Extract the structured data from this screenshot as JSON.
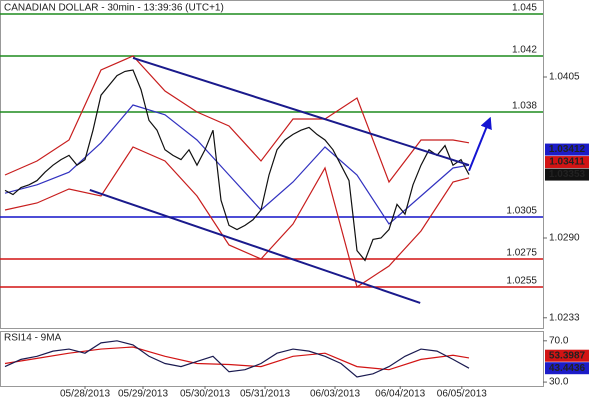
{
  "chart_data": [
    {
      "type": "line",
      "title": "CANADIAN DOLLAR - 30min - 13:39:36 (UTC+1)",
      "xlim": [
        -0.625,
        67.25
      ],
      "ylim": [
        1.02257,
        1.046
      ],
      "yticks": [
        1.0405,
        {
          "value": 1.029,
          "label": "1.0290"
        },
        1.0233
      ],
      "levels": [
        {
          "value": 1.045,
          "color": "#1e8c1e"
        },
        {
          "value": 1.042,
          "color": "#1e8c1e"
        },
        {
          "value": 1.038,
          "color": "#1e8c1e"
        },
        {
          "value": 1.0305,
          "color": "#1414c8"
        },
        {
          "value": 1.0275,
          "color": "#d21414"
        },
        {
          "value": 1.0255,
          "color": "#d21414"
        }
      ],
      "series": [
        {
          "color": "#c81e1e",
          "x": [
            0,
            4,
            8,
            12,
            16,
            20,
            24,
            28,
            32,
            36,
            40,
            44,
            48,
            52,
            56,
            58
          ],
          "values": [
            1.0335,
            1.0345,
            1.036,
            1.041,
            1.042,
            1.0395,
            1.038,
            1.037,
            1.0345,
            1.0375,
            1.0375,
            1.039,
            1.033,
            1.036,
            1.036,
            1.0358
          ]
        },
        {
          "color": "#c81e1e",
          "x": [
            0,
            4,
            8,
            12,
            16,
            20,
            24,
            28,
            32,
            36,
            40,
            44,
            48,
            52,
            56,
            58
          ],
          "values": [
            1.031,
            1.0315,
            1.0325,
            1.032,
            1.0355,
            1.0345,
            1.032,
            1.0285,
            1.0275,
            1.03,
            1.034,
            1.0255,
            1.027,
            1.0295,
            1.033,
            1.0333
          ]
        },
        {
          "color": "#3232c0",
          "x": [
            0,
            4,
            8,
            12,
            16,
            20,
            24,
            28,
            32,
            36,
            40,
            44,
            48,
            52,
            56,
            58
          ],
          "values": [
            1.0322,
            1.0328,
            1.0337,
            1.0358,
            1.0385,
            1.0378,
            1.036,
            1.0335,
            1.031,
            1.033,
            1.0355,
            1.0335,
            1.03,
            1.032,
            1.034,
            1.0342
          ]
        },
        {
          "color": "#111111",
          "x": [
            0,
            1,
            2,
            3,
            4,
            5,
            6,
            7,
            8,
            9,
            10,
            11,
            12,
            13,
            14,
            15,
            16,
            17,
            18,
            19,
            20,
            21,
            22,
            23,
            24,
            25,
            26,
            27,
            28,
            29,
            30,
            31,
            32,
            33,
            34,
            35,
            36,
            37,
            38,
            39,
            40,
            41,
            42,
            43,
            44,
            45,
            46,
            47,
            48,
            49,
            50,
            51,
            52,
            53,
            54,
            55,
            56,
            57,
            58
          ],
          "values": [
            1.0324,
            1.0321,
            1.0326,
            1.0328,
            1.0331,
            1.0337,
            1.0342,
            1.0346,
            1.0349,
            1.0342,
            1.0346,
            1.0367,
            1.0392,
            1.0399,
            1.0406,
            1.0409,
            1.041,
            1.0396,
            1.0374,
            1.0367,
            1.0353,
            1.0349,
            1.0346,
            1.0353,
            1.0342,
            1.0353,
            1.0367,
            1.0317,
            1.0299,
            1.0296,
            1.0299,
            1.0303,
            1.031,
            1.0335,
            1.0353,
            1.036,
            1.0364,
            1.0367,
            1.0369,
            1.0364,
            1.036,
            1.0353,
            1.0342,
            1.0331,
            1.0281,
            1.0274,
            1.0289,
            1.029,
            1.0296,
            1.0314,
            1.0307,
            1.0328,
            1.0342,
            1.0353,
            1.0349,
            1.0356,
            1.0342,
            1.0346,
            1.03353
          ]
        }
      ],
      "lines": [
        {
          "color": "#1a1a8c",
          "x": [
            16,
            58
          ],
          "y": [
            1.04186,
            1.03421
          ]
        },
        {
          "color": "#1a1a8c",
          "x": [
            10.6,
            51.9
          ],
          "y": [
            1.03243,
            1.02436
          ]
        },
        {
          "color": "#1414d2",
          "x": [
            58,
            60.6
          ],
          "y": [
            1.0338,
            1.0375
          ],
          "arrow": true
        }
      ],
      "tags": [
        {
          "value": 1.03412,
          "color": "#1c1cc8"
        },
        {
          "value": 1.03411,
          "color": "#d21414"
        },
        {
          "value": 1.03353,
          "color": "#111111"
        }
      ]
    },
    {
      "type": "line",
      "title": "RSI14 - 9MA",
      "xlim": [
        -0.625,
        67.25
      ],
      "ylim": [
        26.2,
        79.5
      ],
      "yticks": [
        {
          "value": 70,
          "label": "70.0"
        },
        {
          "value": 30,
          "label": "30.0"
        }
      ],
      "xticks": [
        {
          "value": 10,
          "label": "05/28/2013"
        },
        {
          "value": 17.25,
          "label": "05/29/2013"
        },
        {
          "value": 25,
          "label": "05/30/2013"
        },
        {
          "value": 32.5,
          "label": "05/31/2013"
        },
        {
          "value": 41.25,
          "label": "06/03/2013"
        },
        {
          "value": 49.4,
          "label": "06/04/2013"
        },
        {
          "value": 57.1,
          "label": "06/05/2013"
        }
      ],
      "series": [
        {
          "color": "#d21414",
          "x": [
            0,
            4,
            8,
            12,
            16,
            20,
            24,
            28,
            32,
            36,
            40,
            44,
            48,
            52,
            56,
            58
          ],
          "values": [
            48,
            53,
            58,
            62,
            64,
            55,
            48,
            47,
            45,
            55,
            58,
            45,
            42,
            52,
            56,
            53.3987
          ]
        },
        {
          "color": "#1a1a50",
          "x": [
            0,
            2,
            4,
            6,
            8,
            10,
            12,
            14,
            16,
            18,
            20,
            22,
            24,
            26,
            28,
            30,
            32,
            34,
            36,
            38,
            40,
            42,
            44,
            46,
            48,
            50,
            52,
            54,
            56,
            58
          ],
          "values": [
            45,
            52,
            55,
            60,
            62,
            58,
            68,
            70,
            66,
            55,
            48,
            45,
            50,
            55,
            40,
            42,
            48,
            58,
            62,
            60,
            55,
            48,
            35,
            38,
            45,
            55,
            62,
            60,
            52,
            43.4436
          ]
        }
      ],
      "tags": [
        {
          "value": 53.3987,
          "color": "#d21414"
        },
        {
          "value": 43.4436,
          "color": "#1c1cc8"
        }
      ]
    }
  ]
}
